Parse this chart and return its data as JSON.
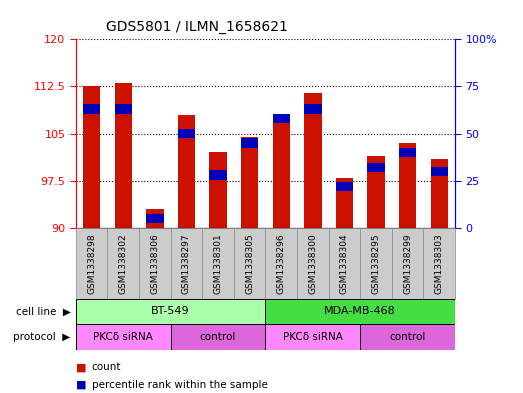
{
  "title": "GDS5801 / ILMN_1658621",
  "samples": [
    "GSM1338298",
    "GSM1338302",
    "GSM1338306",
    "GSM1338297",
    "GSM1338301",
    "GSM1338305",
    "GSM1338296",
    "GSM1338300",
    "GSM1338304",
    "GSM1338295",
    "GSM1338299",
    "GSM1338303"
  ],
  "red_values": [
    112.5,
    113.0,
    93.0,
    108.0,
    102.0,
    104.5,
    108.0,
    111.5,
    98.0,
    101.5,
    103.5,
    101.0
  ],
  "blue_values_pct": [
    63,
    63,
    5,
    50,
    28,
    45,
    58,
    63,
    22,
    32,
    40,
    30
  ],
  "ymin": 90,
  "ymax": 120,
  "yticks_left": [
    90,
    97.5,
    105,
    112.5,
    120
  ],
  "yticks_right_pct": [
    0,
    25,
    50,
    75,
    100
  ],
  "cell_line_groups": [
    {
      "label": "BT-549",
      "start": 0,
      "end": 6,
      "color": "#AAFFAA"
    },
    {
      "label": "MDA-MB-468",
      "start": 6,
      "end": 12,
      "color": "#44DD44"
    }
  ],
  "protocol_groups": [
    {
      "label": "PKCδ siRNA",
      "start": 0,
      "end": 3,
      "color": "#FF88FF"
    },
    {
      "label": "control",
      "start": 3,
      "end": 6,
      "color": "#DD66DD"
    },
    {
      "label": "PKCδ siRNA",
      "start": 6,
      "end": 9,
      "color": "#FF88FF"
    },
    {
      "label": "control",
      "start": 9,
      "end": 12,
      "color": "#DD66DD"
    }
  ],
  "bar_color_red": "#CC1100",
  "bar_color_blue": "#0000BB",
  "plot_bg": "#FFFFFF",
  "bar_width": 0.55,
  "blue_bar_height": 1.5,
  "xtick_bg": "#CCCCCC"
}
